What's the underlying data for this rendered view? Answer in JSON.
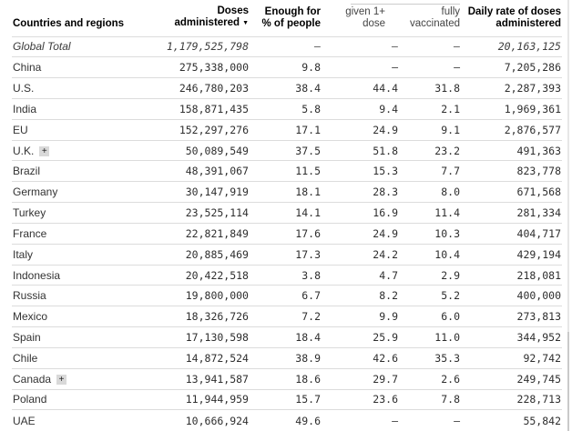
{
  "icons": {
    "sort_descending": "▼",
    "expand": "+"
  },
  "colors": {
    "background": "#ffffff",
    "header_text": "#000000",
    "subheader_text": "#444444",
    "body_text": "#2e2e2e",
    "total_row_text": "#3d3d3d",
    "row_divider": "#dcdcdc",
    "group_overline": "#cccccc",
    "expand_button_bg": "#d9d9d9",
    "scrollbar_thumb": "#c9c9c9"
  },
  "chart_data": {
    "type": "table",
    "columns": [
      {
        "key": "country",
        "label": "Countries and regions"
      },
      {
        "key": "doses",
        "label_line1": "Doses",
        "label_line2": "administered",
        "sorted": "descending"
      },
      {
        "key": "enough",
        "label_line1": "Enough for",
        "label_line2": "% of people"
      },
      {
        "key": "given",
        "label_line1": "given 1+",
        "label_line2": "dose",
        "group": "secondary"
      },
      {
        "key": "fully",
        "label_line1": "fully",
        "label_line2": "vaccinated",
        "group": "secondary"
      },
      {
        "key": "daily",
        "label_line1": "Daily rate of doses",
        "label_line2": "administered"
      }
    ],
    "rows": [
      {
        "country": "Global Total",
        "doses": "1,179,525,798",
        "enough": "–",
        "given": "–",
        "fully": "–",
        "daily": "20,163,125",
        "italic": true,
        "has_expand_button": false
      },
      {
        "country": "China",
        "doses": "275,338,000",
        "enough": "9.8",
        "given": "–",
        "fully": "–",
        "daily": "7,205,286",
        "italic": false,
        "has_expand_button": false
      },
      {
        "country": "U.S.",
        "doses": "246,780,203",
        "enough": "38.4",
        "given": "44.4",
        "fully": "31.8",
        "daily": "2,287,393",
        "italic": false,
        "has_expand_button": false
      },
      {
        "country": "India",
        "doses": "158,871,435",
        "enough": "5.8",
        "given": "9.4",
        "fully": "2.1",
        "daily": "1,969,361",
        "italic": false,
        "has_expand_button": false
      },
      {
        "country": "EU",
        "doses": "152,297,276",
        "enough": "17.1",
        "given": "24.9",
        "fully": "9.1",
        "daily": "2,876,577",
        "italic": false,
        "has_expand_button": false
      },
      {
        "country": "U.K.",
        "doses": "50,089,549",
        "enough": "37.5",
        "given": "51.8",
        "fully": "23.2",
        "daily": "491,363",
        "italic": false,
        "has_expand_button": true
      },
      {
        "country": "Brazil",
        "doses": "48,391,067",
        "enough": "11.5",
        "given": "15.3",
        "fully": "7.7",
        "daily": "823,778",
        "italic": false,
        "has_expand_button": false
      },
      {
        "country": "Germany",
        "doses": "30,147,919",
        "enough": "18.1",
        "given": "28.3",
        "fully": "8.0",
        "daily": "671,568",
        "italic": false,
        "has_expand_button": false
      },
      {
        "country": "Turkey",
        "doses": "23,525,114",
        "enough": "14.1",
        "given": "16.9",
        "fully": "11.4",
        "daily": "281,334",
        "italic": false,
        "has_expand_button": false
      },
      {
        "country": "France",
        "doses": "22,821,849",
        "enough": "17.6",
        "given": "24.9",
        "fully": "10.3",
        "daily": "404,717",
        "italic": false,
        "has_expand_button": false
      },
      {
        "country": "Italy",
        "doses": "20,885,469",
        "enough": "17.3",
        "given": "24.2",
        "fully": "10.4",
        "daily": "429,194",
        "italic": false,
        "has_expand_button": false
      },
      {
        "country": "Indonesia",
        "doses": "20,422,518",
        "enough": "3.8",
        "given": "4.7",
        "fully": "2.9",
        "daily": "218,081",
        "italic": false,
        "has_expand_button": false
      },
      {
        "country": "Russia",
        "doses": "19,800,000",
        "enough": "6.7",
        "given": "8.2",
        "fully": "5.2",
        "daily": "400,000",
        "italic": false,
        "has_expand_button": false
      },
      {
        "country": "Mexico",
        "doses": "18,326,726",
        "enough": "7.2",
        "given": "9.9",
        "fully": "6.0",
        "daily": "273,813",
        "italic": false,
        "has_expand_button": false
      },
      {
        "country": "Spain",
        "doses": "17,130,598",
        "enough": "18.4",
        "given": "25.9",
        "fully": "11.0",
        "daily": "344,952",
        "italic": false,
        "has_expand_button": false
      },
      {
        "country": "Chile",
        "doses": "14,872,524",
        "enough": "38.9",
        "given": "42.6",
        "fully": "35.3",
        "daily": "92,742",
        "italic": false,
        "has_expand_button": false
      },
      {
        "country": "Canada",
        "doses": "13,941,587",
        "enough": "18.6",
        "given": "29.7",
        "fully": "2.6",
        "daily": "249,745",
        "italic": false,
        "has_expand_button": true
      },
      {
        "country": "Poland",
        "doses": "11,944,959",
        "enough": "15.7",
        "given": "23.6",
        "fully": "7.8",
        "daily": "228,713",
        "italic": false,
        "has_expand_button": false
      },
      {
        "country": "UAE",
        "doses": "10,666,924",
        "enough": "49.6",
        "given": "–",
        "fully": "–",
        "daily": "55,842",
        "italic": false,
        "has_expand_button": false
      }
    ]
  }
}
